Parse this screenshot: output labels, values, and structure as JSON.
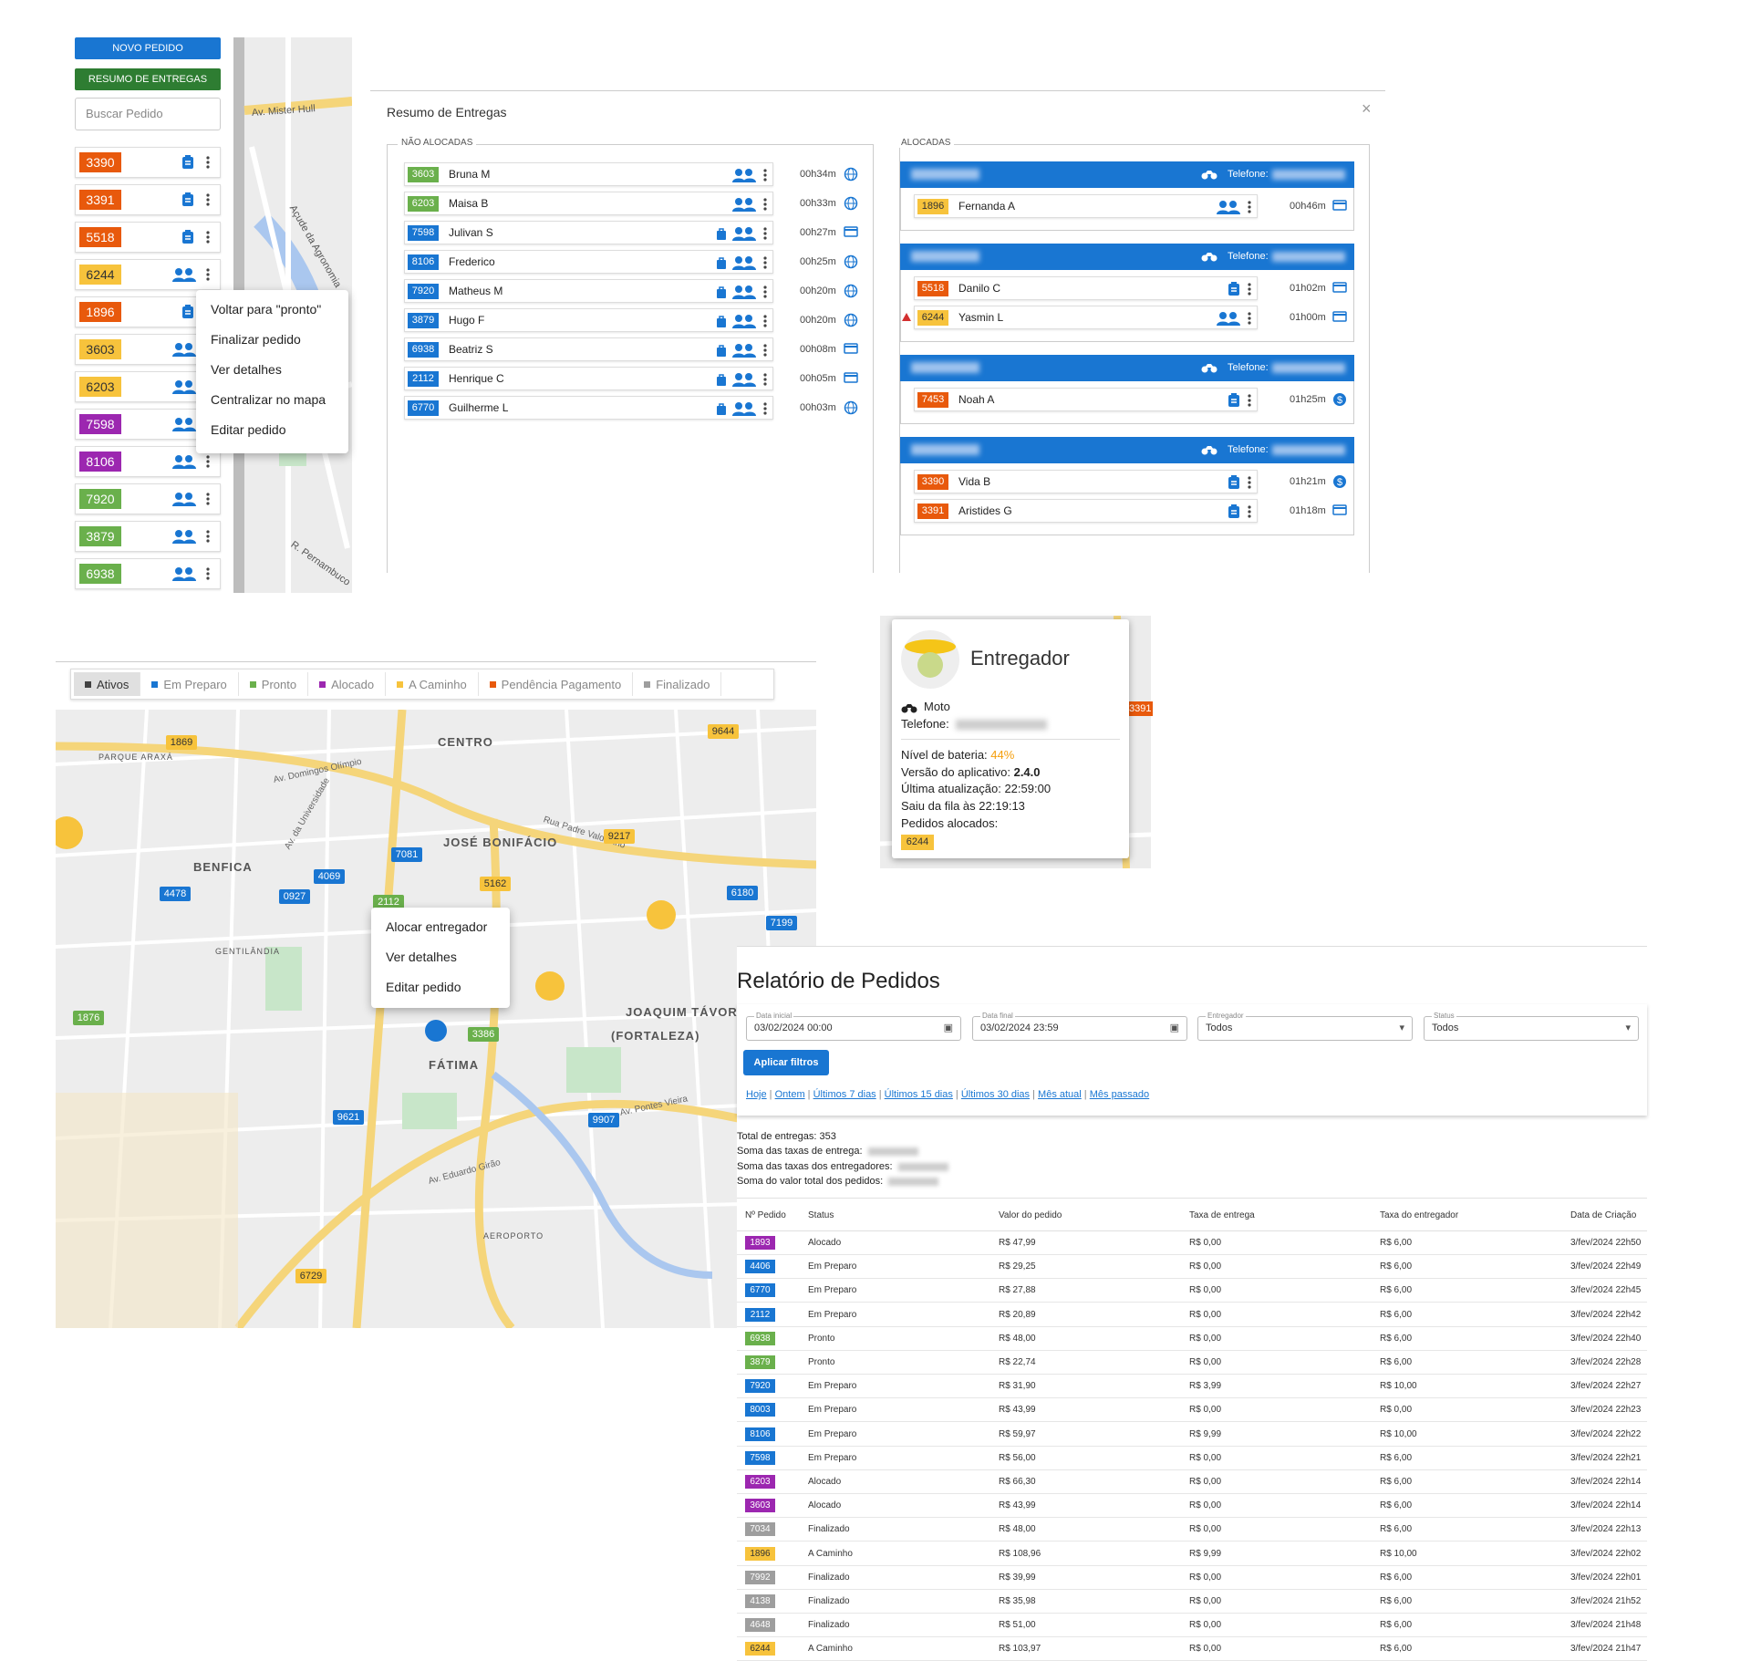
{
  "sidebar": {
    "new_button": "NOVO PEDIDO",
    "summary_button": "RESUMO DE ENTREGAS",
    "search_placeholder": "Buscar Pedido",
    "orders": [
      {
        "id": "3390",
        "color": "#e8590c",
        "icon": "clip"
      },
      {
        "id": "3391",
        "color": "#e8590c",
        "icon": "clip"
      },
      {
        "id": "5518",
        "color": "#e8590c",
        "icon": "clip"
      },
      {
        "id": "6244",
        "color": "#f7c33c",
        "icon": "person"
      },
      {
        "id": "1896",
        "color": "#e8590c",
        "icon": "clip"
      },
      {
        "id": "3603",
        "color": "#f7c33c",
        "icon": "person"
      },
      {
        "id": "6203",
        "color": "#f7c33c",
        "icon": "person"
      },
      {
        "id": "7598",
        "color": "#9c27b0",
        "icon": "person"
      },
      {
        "id": "8106",
        "color": "#9c27b0",
        "icon": "person"
      },
      {
        "id": "7920",
        "color": "#6ab04c",
        "icon": "person"
      },
      {
        "id": "3879",
        "color": "#6ab04c",
        "icon": "person"
      },
      {
        "id": "6938",
        "color": "#6ab04c",
        "icon": "person"
      }
    ],
    "context_menu": [
      "Voltar para \"pronto\"",
      "Finalizar pedido",
      "Ver detalhes",
      "Centralizar no mapa",
      "Editar pedido"
    ],
    "map_labels": [
      "Av. Mister Hull",
      "Açude da Agronomia",
      "R. Pernambuco"
    ]
  },
  "summary_modal": {
    "title": "Resumo de Entregas",
    "unallocated_title": "NÃO ALOCADAS",
    "allocated_title": "ALOCADAS",
    "phone_label": "Telefone:",
    "unallocated": [
      {
        "id": "3603",
        "name": "Bruna M",
        "time": "00h34m",
        "color": "#6ab04c",
        "bag": false,
        "pay": "globe"
      },
      {
        "id": "6203",
        "name": "Maisa B",
        "time": "00h33m",
        "color": "#6ab04c",
        "bag": false,
        "pay": "globe"
      },
      {
        "id": "7598",
        "name": "Julivan S",
        "time": "00h27m",
        "color": "#1976d2",
        "bag": true,
        "pay": "card"
      },
      {
        "id": "8106",
        "name": "Frederico",
        "time": "00h25m",
        "color": "#1976d2",
        "bag": true,
        "pay": "globe"
      },
      {
        "id": "7920",
        "name": "Matheus M",
        "time": "00h20m",
        "color": "#1976d2",
        "bag": true,
        "pay": "globe"
      },
      {
        "id": "3879",
        "name": "Hugo F",
        "time": "00h20m",
        "color": "#1976d2",
        "bag": true,
        "pay": "globe"
      },
      {
        "id": "6938",
        "name": "Beatriz S",
        "time": "00h08m",
        "color": "#1976d2",
        "bag": true,
        "pay": "card"
      },
      {
        "id": "2112",
        "name": "Henrique C",
        "time": "00h05m",
        "color": "#1976d2",
        "bag": true,
        "pay": "card"
      },
      {
        "id": "6770",
        "name": "Guilherme L",
        "time": "00h03m",
        "color": "#1976d2",
        "bag": true,
        "pay": "globe"
      }
    ],
    "allocated": [
      [
        {
          "id": "1896",
          "name": "Fernanda A",
          "time": "00h46m",
          "color": "#f7c33c",
          "icon": "person",
          "pay": "card",
          "warn": false
        }
      ],
      [
        {
          "id": "5518",
          "name": "Danilo C",
          "time": "01h02m",
          "color": "#e8590c",
          "icon": "clip",
          "pay": "card",
          "warn": false
        },
        {
          "id": "6244",
          "name": "Yasmin L",
          "time": "01h00m",
          "color": "#f7c33c",
          "icon": "person",
          "pay": "card",
          "warn": true
        }
      ],
      [
        {
          "id": "7453",
          "name": "Noah A",
          "time": "01h25m",
          "color": "#e8590c",
          "icon": "clip",
          "pay": "dollar",
          "warn": false
        }
      ],
      [
        {
          "id": "3390",
          "name": "Vida B",
          "time": "01h21m",
          "color": "#e8590c",
          "icon": "clip",
          "pay": "dollar",
          "warn": false
        },
        {
          "id": "3391",
          "name": "Aristides G",
          "time": "01h18m",
          "color": "#e8590c",
          "icon": "clip",
          "pay": "card",
          "warn": false
        }
      ]
    ]
  },
  "map": {
    "filters": [
      {
        "label": "Ativos",
        "color": "#424242"
      },
      {
        "label": "Em Preparo",
        "color": "#1976d2"
      },
      {
        "label": "Pronto",
        "color": "#6ab04c"
      },
      {
        "label": "Alocado",
        "color": "#9c27b0"
      },
      {
        "label": "A Caminho",
        "color": "#f7c33c"
      },
      {
        "label": "Pendência Pagamento",
        "color": "#e8590c"
      },
      {
        "label": "Finalizado",
        "color": "#9e9e9e"
      }
    ],
    "areas": [
      "CENTRO",
      "JOSÉ BONIFÁCIO",
      "BENFICA",
      "FÁTIMA",
      "JOAQUIM TÁVORA",
      "(FORTALEZA)",
      "GENTILÂNDIA",
      "PARQUE ARAXÁ",
      "AEROPORTO"
    ],
    "streets": [
      "Av. Domingos Olímpio",
      "Av. da Universidade",
      "Av. Pontes Vieira",
      "Av. Eduardo Girão",
      "Rua Padre Valdevino"
    ],
    "pins": [
      {
        "id": "1869",
        "color": "#f7c33c"
      },
      {
        "id": "9644",
        "color": "#f7c33c"
      },
      {
        "id": "9217",
        "color": "#f7c33c"
      },
      {
        "id": "7081",
        "color": "#1976d2"
      },
      {
        "id": "4069",
        "color": "#1976d2"
      },
      {
        "id": "0927",
        "color": "#1976d2"
      },
      {
        "id": "4478",
        "color": "#1976d2"
      },
      {
        "id": "5162",
        "color": "#f7c33c"
      },
      {
        "id": "2112",
        "color": "#6ab04c"
      },
      {
        "id": "6180",
        "color": "#1976d2"
      },
      {
        "id": "7199",
        "color": "#1976d2"
      },
      {
        "id": "1876",
        "color": "#6ab04c"
      },
      {
        "id": "3386",
        "color": "#6ab04c"
      },
      {
        "id": "9621",
        "color": "#1976d2"
      },
      {
        "id": "9907",
        "color": "#1976d2"
      },
      {
        "id": "6729",
        "color": "#f7c33c"
      }
    ],
    "context_menu": [
      "Alocar entregador",
      "Ver detalhes",
      "Editar pedido"
    ]
  },
  "courier_popup": {
    "title": "Entregador",
    "vehicle": "Moto",
    "phone_label": "Telefone:",
    "battery_label": "Nível de bateria:",
    "battery": "44%",
    "version_label": "Versão do aplicativo:",
    "version": "2.4.0",
    "updated_label": "Última atualização:",
    "updated": "22:59:00",
    "queue_label": "Saiu da fila às",
    "queue": "22:19:13",
    "orders_label": "Pedidos alocados:",
    "orders": [
      "6244"
    ],
    "map_pin": "3391"
  },
  "report": {
    "title": "Relatório de Pedidos",
    "filters": [
      {
        "label": "Data inicial",
        "value": "03/02/2024 00:00"
      },
      {
        "label": "Data final",
        "value": "03/02/2024 23:59"
      },
      {
        "label": "Entregador",
        "value": "Todos"
      },
      {
        "label": "Status",
        "value": "Todos"
      }
    ],
    "apply": "Aplicar filtros",
    "quick_links": [
      "Hoje",
      "Ontem",
      "Últimos 7 dias",
      "Últimos 15 dias",
      "Últimos 30 dias",
      "Mês atual",
      "Mês passado"
    ],
    "total_label": "Total de entregas:",
    "total": 353,
    "sums": [
      "Soma das taxas de entrega:",
      "Soma das taxas dos entregadores:",
      "Soma do valor total dos pedidos:"
    ],
    "columns": [
      "Nº Pedido",
      "Status",
      "Valor do pedido",
      "Taxa de entrega",
      "Taxa do entregador",
      "Data de Criação"
    ],
    "rows": [
      [
        "1893",
        "Alocado",
        "R$ 47,99",
        "R$ 0,00",
        "R$ 6,00",
        "3/fev/2024 22h50"
      ],
      [
        "4406",
        "Em Preparo",
        "R$ 29,25",
        "R$ 0,00",
        "R$ 6,00",
        "3/fev/2024 22h49"
      ],
      [
        "6770",
        "Em Preparo",
        "R$ 27,88",
        "R$ 0,00",
        "R$ 6,00",
        "3/fev/2024 22h45"
      ],
      [
        "2112",
        "Em Preparo",
        "R$ 20,89",
        "R$ 0,00",
        "R$ 6,00",
        "3/fev/2024 22h42"
      ],
      [
        "6938",
        "Pronto",
        "R$ 48,00",
        "R$ 0,00",
        "R$ 6,00",
        "3/fev/2024 22h40"
      ],
      [
        "3879",
        "Pronto",
        "R$ 22,74",
        "R$ 0,00",
        "R$ 6,00",
        "3/fev/2024 22h28"
      ],
      [
        "7920",
        "Em Preparo",
        "R$ 31,90",
        "R$ 3,99",
        "R$ 10,00",
        "3/fev/2024 22h27"
      ],
      [
        "8003",
        "Em Preparo",
        "R$ 43,99",
        "R$ 0,00",
        "R$ 0,00",
        "3/fev/2024 22h23"
      ],
      [
        "8106",
        "Em Preparo",
        "R$ 59,97",
        "R$ 9,99",
        "R$ 10,00",
        "3/fev/2024 22h22"
      ],
      [
        "7598",
        "Em Preparo",
        "R$ 56,00",
        "R$ 0,00",
        "R$ 6,00",
        "3/fev/2024 22h21"
      ],
      [
        "6203",
        "Alocado",
        "R$ 66,30",
        "R$ 0,00",
        "R$ 6,00",
        "3/fev/2024 22h14"
      ],
      [
        "3603",
        "Alocado",
        "R$ 43,99",
        "R$ 0,00",
        "R$ 6,00",
        "3/fev/2024 22h14"
      ],
      [
        "7034",
        "Finalizado",
        "R$ 48,00",
        "R$ 0,00",
        "R$ 6,00",
        "3/fev/2024 22h13"
      ],
      [
        "1896",
        "A Caminho",
        "R$ 108,96",
        "R$ 9,99",
        "R$ 10,00",
        "3/fev/2024 22h02"
      ],
      [
        "7992",
        "Finalizado",
        "R$ 39,99",
        "R$ 0,00",
        "R$ 6,00",
        "3/fev/2024 22h01"
      ],
      [
        "4138",
        "Finalizado",
        "R$ 35,98",
        "R$ 0,00",
        "R$ 6,00",
        "3/fev/2024 21h52"
      ],
      [
        "4648",
        "Finalizado",
        "R$ 51,00",
        "R$ 0,00",
        "R$ 6,00",
        "3/fev/2024 21h48"
      ],
      [
        "6244",
        "A Caminho",
        "R$ 103,97",
        "R$ 0,00",
        "R$ 6,00",
        "3/fev/2024 21h47"
      ]
    ]
  }
}
